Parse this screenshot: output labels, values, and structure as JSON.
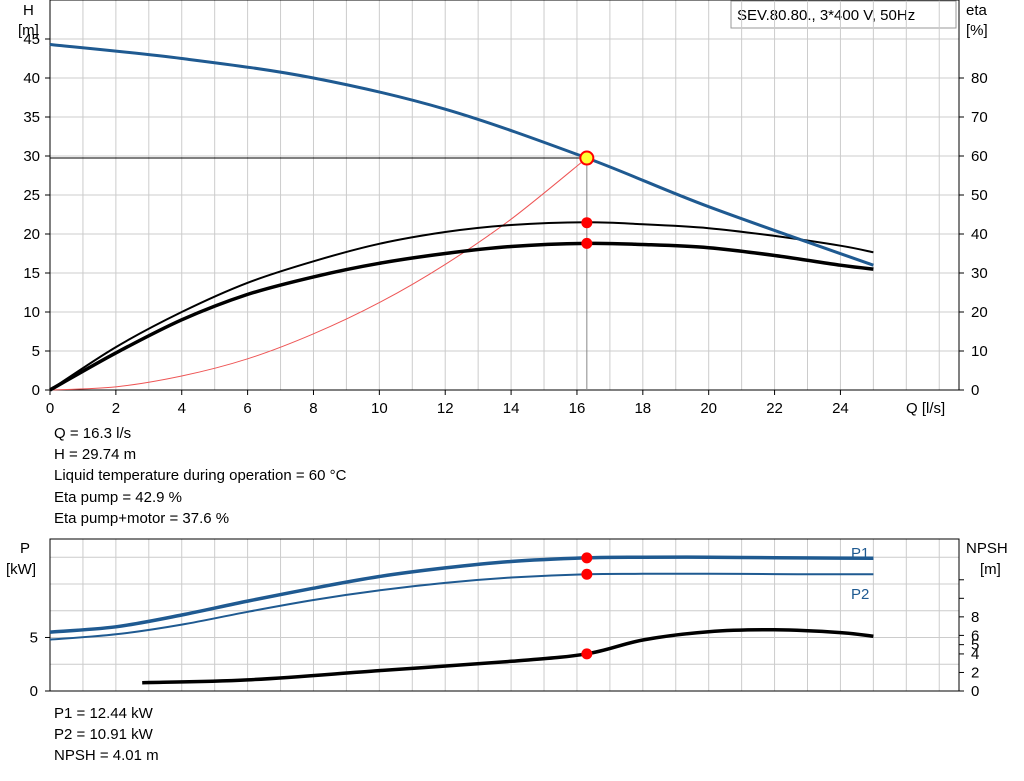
{
  "title_box": "SEV.80.80., 3*400 V, 50Hz",
  "head_chart": {
    "left_axis": {
      "name": "H",
      "unit": "[m]",
      "ticks": [
        0,
        5,
        10,
        15,
        20,
        25,
        30,
        35,
        40,
        45
      ]
    },
    "right_axis": {
      "name": "eta",
      "unit": "[%]",
      "ticks": [
        0,
        10,
        20,
        30,
        40,
        50,
        60,
        70,
        80
      ]
    },
    "x_axis": {
      "label": "Q [l/s]",
      "ticks": [
        0,
        2,
        4,
        6,
        8,
        10,
        12,
        14,
        16,
        18,
        20,
        22,
        24
      ]
    }
  },
  "power_chart": {
    "left_axis": {
      "name": "P",
      "unit": "[kW]",
      "ticks": [
        0,
        5
      ]
    },
    "right_axis": {
      "name": "NPSH",
      "unit": "[m]",
      "ticks": [
        0,
        2,
        4,
        5,
        6,
        8
      ]
    },
    "labels": {
      "p1": "P1",
      "p2": "P2"
    }
  },
  "info_lines": [
    "Q = 16.3 l/s",
    "H = 29.74 m",
    "Liquid temperature during operation = 60 °C",
    "Eta pump = 42.9 %",
    "Eta pump+motor = 37.6 %"
  ],
  "power_info_lines": [
    "P1 = 12.44 kW",
    "P2 = 10.91 kW",
    "NPSH = 4.01 m"
  ],
  "colors": {
    "curve_blue": "#1f5a91",
    "curve_black": "#000000",
    "system_curve": "#ee5555",
    "marker_red": "#ff0000",
    "duty_point_fill": "#ffff33",
    "grid": "#cccccc"
  },
  "chart_data": [
    {
      "type": "line",
      "xlabel": "Q [l/s]",
      "ylabel": "H [m]",
      "y2label": "eta [%]",
      "xlim": [
        0,
        27.6
      ],
      "ylim": [
        0,
        50
      ],
      "y2lim": [
        0,
        100
      ],
      "grid": true,
      "series": [
        {
          "name": "H",
          "axis": "left",
          "x": [
            0,
            4,
            8,
            12,
            16.3,
            20,
            25
          ],
          "y": [
            44.3,
            42.5,
            40.0,
            36.0,
            29.74,
            23.5,
            16.0
          ]
        },
        {
          "name": "Eta pump",
          "axis": "right",
          "x": [
            0,
            2,
            4,
            6,
            8,
            10,
            12,
            14,
            16.3,
            18,
            20,
            22,
            24,
            25
          ],
          "y": [
            0,
            11,
            20,
            27.5,
            33,
            37.5,
            40.5,
            42.3,
            43,
            42.5,
            41.5,
            39.5,
            37,
            35.3
          ]
        },
        {
          "name": "Eta pump+motor",
          "axis": "right",
          "x": [
            0,
            2,
            4,
            6,
            8,
            10,
            12,
            14,
            16.3,
            18,
            20,
            22,
            24,
            25
          ],
          "y": [
            0,
            9.5,
            18,
            24.5,
            29,
            32.5,
            35,
            36.8,
            37.6,
            37.3,
            36.5,
            34.5,
            32,
            31
          ]
        },
        {
          "name": "System curve",
          "axis": "left",
          "x": [
            0,
            2,
            4,
            6,
            8,
            10,
            12,
            14,
            16.3
          ],
          "y": [
            0,
            0.4,
            1.8,
            4.0,
            7.2,
            11.2,
            16.1,
            21.9,
            29.74
          ]
        }
      ],
      "duty_point": {
        "Q": 16.3,
        "H": 29.74,
        "eta_pump": 42.9,
        "eta_total": 37.6
      }
    },
    {
      "type": "line",
      "ylabel": "P [kW]",
      "y2label": "NPSH [m]",
      "xlim": [
        0,
        27.6
      ],
      "ylim": [
        0,
        14.2
      ],
      "y2lim": [
        0,
        16.4
      ],
      "grid": true,
      "series": [
        {
          "name": "P1",
          "axis": "left",
          "x": [
            0,
            2,
            4,
            6,
            8,
            10,
            12,
            14,
            16.3,
            18,
            20,
            22,
            24,
            25
          ],
          "y": [
            5.5,
            6.0,
            7.1,
            8.4,
            9.6,
            10.7,
            11.5,
            12.1,
            12.44,
            12.5,
            12.5,
            12.45,
            12.42,
            12.4
          ]
        },
        {
          "name": "P2",
          "axis": "left",
          "x": [
            0,
            2,
            4,
            6,
            8,
            10,
            12,
            14,
            16.3,
            18,
            20,
            22,
            24,
            25
          ],
          "y": [
            4.8,
            5.3,
            6.2,
            7.4,
            8.5,
            9.4,
            10.1,
            10.6,
            10.91,
            10.95,
            10.95,
            10.92,
            10.9,
            10.9
          ]
        },
        {
          "name": "NPSH",
          "axis": "right",
          "x": [
            2.8,
            6,
            10,
            14,
            16.3,
            18,
            20,
            22,
            24,
            25
          ],
          "y": [
            0.9,
            1.2,
            2.2,
            3.2,
            4.01,
            5.5,
            6.4,
            6.6,
            6.3,
            5.9
          ]
        }
      ],
      "duty_point": {
        "Q": 16.3,
        "P1": 12.44,
        "P2": 10.91,
        "NPSH": 4.01
      }
    }
  ]
}
